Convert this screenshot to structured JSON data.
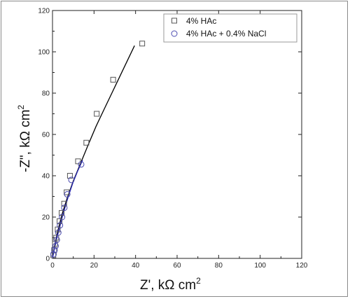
{
  "chart_data": {
    "type": "scatter",
    "xlabel_main": "Z', kΩ cm",
    "xlabel_sup": "2",
    "ylabel_main": "-Z\", kΩ cm",
    "ylabel_sup": "2",
    "xlim": [
      0,
      120
    ],
    "ylim": [
      0,
      120
    ],
    "xticks": [
      0,
      20,
      40,
      60,
      80,
      100,
      120
    ],
    "yticks": [
      0,
      20,
      40,
      60,
      80,
      100,
      120
    ],
    "grid": false,
    "legend_position": "top-right",
    "series": [
      {
        "name": "4% HAc",
        "marker": "square",
        "color": "#555555",
        "points": [
          [
            0.4,
            1.5
          ],
          [
            0.8,
            4
          ],
          [
            1.2,
            7
          ],
          [
            1.8,
            10
          ],
          [
            2.5,
            14
          ],
          [
            3.4,
            18
          ],
          [
            4.4,
            22
          ],
          [
            5.6,
            26.5
          ],
          [
            6.8,
            32
          ],
          [
            8.4,
            40
          ],
          [
            12.3,
            47
          ],
          [
            16.3,
            56
          ],
          [
            21.3,
            70
          ],
          [
            29.2,
            86.5
          ],
          [
            43.2,
            104
          ]
        ],
        "fit_color": "#000000",
        "fit": [
          [
            0,
            0
          ],
          [
            1,
            6
          ],
          [
            2.5,
            13
          ],
          [
            4.5,
            21
          ],
          [
            7,
            29
          ],
          [
            10,
            37.5
          ],
          [
            13.5,
            46
          ],
          [
            17,
            54.5
          ],
          [
            21,
            64
          ],
          [
            25,
            72.5
          ],
          [
            30,
            83
          ],
          [
            35,
            93.5
          ],
          [
            39.5,
            103
          ]
        ]
      },
      {
        "name": "4% HAc + 0.4% NaCl",
        "marker": "circle",
        "color": "#4b4bb0",
        "points": [
          [
            0.5,
            2
          ],
          [
            1,
            4
          ],
          [
            1.5,
            6
          ],
          [
            2.1,
            9
          ],
          [
            2.8,
            12.5
          ],
          [
            3.6,
            16
          ],
          [
            4.6,
            20
          ],
          [
            5.7,
            24.5
          ],
          [
            7.1,
            31
          ],
          [
            9.1,
            38
          ],
          [
            13.8,
            45.5
          ]
        ],
        "fit_color": "#2a2ab8",
        "fit": [
          [
            0,
            0
          ],
          [
            1,
            5
          ],
          [
            2,
            9.5
          ],
          [
            3.2,
            14
          ],
          [
            4.5,
            19
          ],
          [
            6,
            24.5
          ],
          [
            7.8,
            30.5
          ],
          [
            9.8,
            36.5
          ],
          [
            12,
            42
          ],
          [
            14.5,
            47.5
          ]
        ]
      }
    ]
  }
}
